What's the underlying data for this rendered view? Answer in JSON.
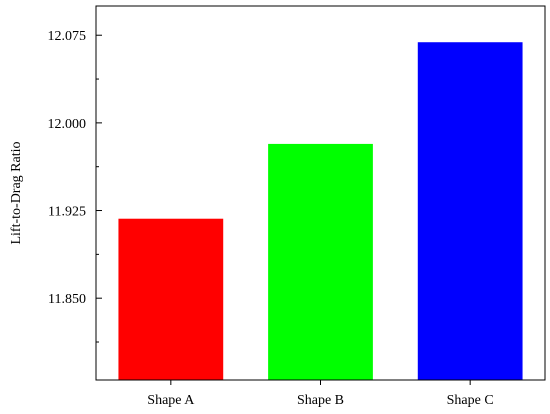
{
  "chart_data": {
    "type": "bar",
    "title": "",
    "xlabel": "",
    "ylabel": "Lift-to-Drag Ratio",
    "categories": [
      "Shape A",
      "Shape B",
      "Shape C"
    ],
    "values": [
      11.918,
      11.982,
      12.069
    ],
    "bar_colors": [
      "#ff0000",
      "#00ff00",
      "#0000ff"
    ],
    "ylim": [
      11.78,
      12.1
    ],
    "yticks": [
      11.85,
      11.925,
      12.0,
      12.075
    ],
    "ytick_labels": [
      "11.850",
      "11.925",
      "12.000",
      "12.075"
    ],
    "grid": false,
    "legend": "none"
  }
}
